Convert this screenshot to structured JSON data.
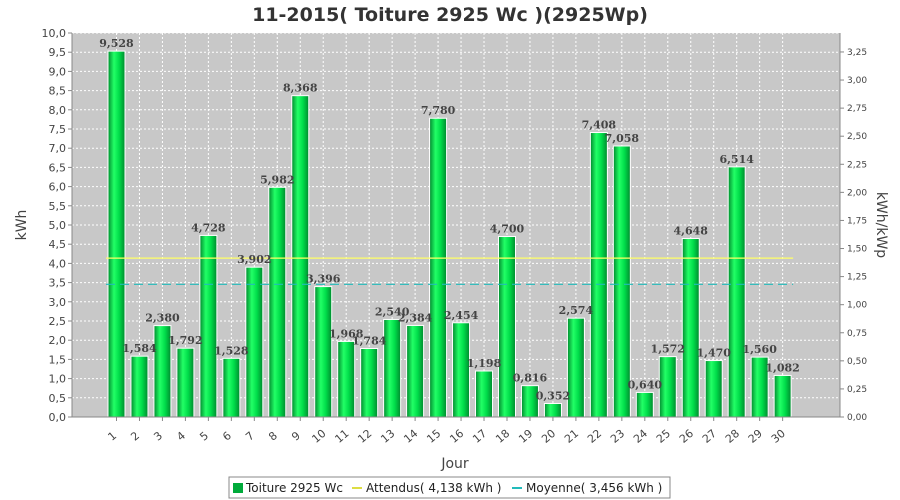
{
  "chart_data": {
    "type": "bar",
    "title": "11-2015( Toiture 2925 Wc )(2925Wp)",
    "xlabel": "Jour",
    "ylabel": "kWh",
    "ylabel_right": "kWh/kWp",
    "categories": [
      "1",
      "2",
      "3",
      "4",
      "5",
      "6",
      "7",
      "8",
      "9",
      "10",
      "11",
      "12",
      "13",
      "14",
      "15",
      "16",
      "17",
      "18",
      "19",
      "20",
      "21",
      "22",
      "23",
      "24",
      "25",
      "26",
      "27",
      "28",
      "29",
      "30"
    ],
    "value_labels": [
      "9,528",
      "1,584",
      "2,380",
      "1,792",
      "4,728",
      "1,528",
      "3,902",
      "5,982",
      "8,368",
      "3,396",
      "1,968",
      "1,784",
      "2,540",
      "2,384",
      "7,780",
      "2,454",
      "1,198",
      "4,700",
      "0,816",
      "0,352",
      "2,574",
      "7,408",
      "7,058",
      "0,640",
      "1,572",
      "4,648",
      "1,470",
      "6,514",
      "1,560",
      "1,082"
    ],
    "series": [
      {
        "name": "Toiture 2925 Wc",
        "values": [
          9.528,
          1.584,
          2.38,
          1.792,
          4.728,
          1.528,
          3.902,
          5.982,
          8.368,
          3.396,
          1.968,
          1.784,
          2.54,
          2.384,
          7.78,
          2.454,
          1.198,
          4.7,
          0.816,
          0.352,
          2.574,
          7.408,
          7.058,
          0.64,
          1.572,
          4.648,
          1.47,
          6.514,
          1.56,
          1.082
        ],
        "color": "#00cc44"
      }
    ],
    "reference_lines": [
      {
        "name": "Attendus( 4,138 kWh )",
        "value": 4.138,
        "color": "#ffff66",
        "style": "solid"
      },
      {
        "name": "Moyenne( 3,456 kWh )",
        "value": 3.456,
        "color": "#22bbbb",
        "style": "dashed"
      }
    ],
    "ylim": [
      0,
      10
    ],
    "yticks": [
      "0,0",
      "0,5",
      "1,0",
      "1,5",
      "2,0",
      "2,5",
      "3,0",
      "3,5",
      "4,0",
      "4,5",
      "5,0",
      "5,5",
      "6,0",
      "6,5",
      "7,0",
      "7,5",
      "8,0",
      "8,5",
      "9,0",
      "9,5",
      "10,0"
    ],
    "ylim_right": [
      0,
      3.4188
    ],
    "yticks_right": [
      "0,00",
      "0,25",
      "0,50",
      "0,75",
      "1,00",
      "1,25",
      "1,50",
      "1,75",
      "2,00",
      "2,25",
      "2,50",
      "2,75",
      "3,00",
      "3,25"
    ],
    "grid": true,
    "legend_position": "bottom",
    "colors": {
      "plot_background": "#c8c8c8",
      "grid": "#ffffff",
      "bar": "#00cc44"
    }
  }
}
